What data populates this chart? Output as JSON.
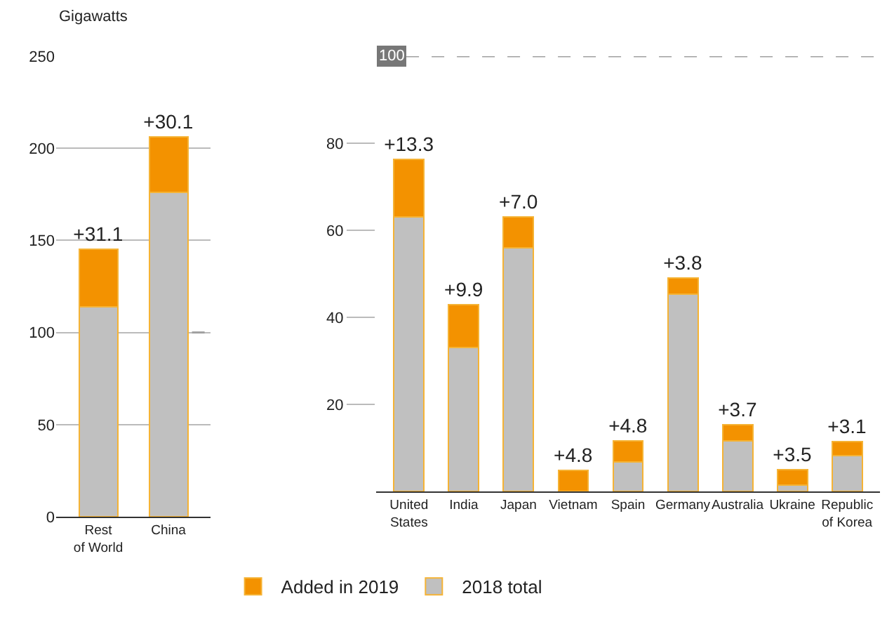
{
  "chart_data": [
    {
      "type": "bar",
      "ylabel": "Gigawatts",
      "categories": [
        "Rest of World",
        "China"
      ],
      "stacked": true,
      "ylim": [
        0,
        250
      ],
      "yticks": [
        0,
        50,
        100,
        150,
        200,
        250
      ],
      "grid": "y",
      "legend": false,
      "series": [
        {
          "color": "#c0c0c0",
          "values": [
            114,
            176
          ]
        },
        {
          "color": "#f39200",
          "values": [
            31.1,
            30.1
          ],
          "value_labels": [
            "+31.1",
            "+30.1"
          ]
        }
      ],
      "ref_lines": [
        {
          "axis": "y",
          "value": 100,
          "color": "#a0a0a0",
          "line_style": "dashed"
        }
      ]
    },
    {
      "type": "bar",
      "categories": [
        "United States",
        "India",
        "Japan",
        "Vietnam",
        "Spain",
        "Germany",
        "Australia",
        "Ukraine",
        "Republic of Korea"
      ],
      "stacked": true,
      "ylim": [
        0,
        100
      ],
      "yticks": [
        20,
        40,
        60,
        80
      ],
      "grid": false,
      "legend": "bottom left",
      "series": [
        {
          "name": "2018 total",
          "color": "#c0c0c0",
          "values": [
            63,
            33,
            56,
            null,
            6.8,
            45.3,
            11.6,
            1.5,
            8.3
          ]
        },
        {
          "name": "Added in 2019",
          "color": "#f39200",
          "values": [
            13.3,
            9.9,
            7.0,
            4.8,
            4.8,
            3.8,
            3.7,
            3.5,
            3.1
          ],
          "value_labels": [
            "+13.3",
            "+9.9",
            "+7.0",
            "+4.8",
            "+4.8",
            "+3.8",
            "+3.7",
            "+3.5",
            "+3.1"
          ]
        }
      ],
      "ref_lines": [
        {
          "axis": "y",
          "value": 100,
          "label": "100",
          "color": "#a0a0a0",
          "line_style": "dashed"
        }
      ]
    }
  ]
}
